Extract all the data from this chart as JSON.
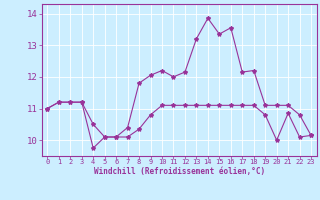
{
  "xlabel": "Windchill (Refroidissement éolien,°C)",
  "background_color": "#cceeff",
  "line_color": "#993399",
  "x_ticks": [
    0,
    1,
    2,
    3,
    4,
    5,
    6,
    7,
    8,
    9,
    10,
    11,
    12,
    13,
    14,
    15,
    16,
    17,
    18,
    19,
    20,
    21,
    22,
    23
  ],
  "ylim": [
    9.5,
    14.3
  ],
  "xlim": [
    -0.5,
    23.5
  ],
  "yticks": [
    10,
    11,
    12,
    13,
    14
  ],
  "series": [
    [
      11.0,
      11.2,
      11.2,
      11.2,
      10.5,
      10.1,
      10.1,
      10.1,
      10.35,
      10.8,
      11.1,
      11.1,
      11.1,
      11.1,
      11.1,
      11.1,
      11.1,
      11.1,
      11.1,
      10.8,
      10.0,
      10.85,
      10.1,
      10.15
    ],
    [
      11.0,
      11.2,
      11.2,
      11.2,
      9.75,
      10.1,
      10.1,
      10.4,
      11.8,
      12.05,
      12.2,
      12.0,
      12.15,
      13.2,
      13.85,
      13.35,
      13.55,
      12.15,
      12.2,
      11.1,
      11.1,
      11.1,
      10.8,
      10.15
    ]
  ]
}
